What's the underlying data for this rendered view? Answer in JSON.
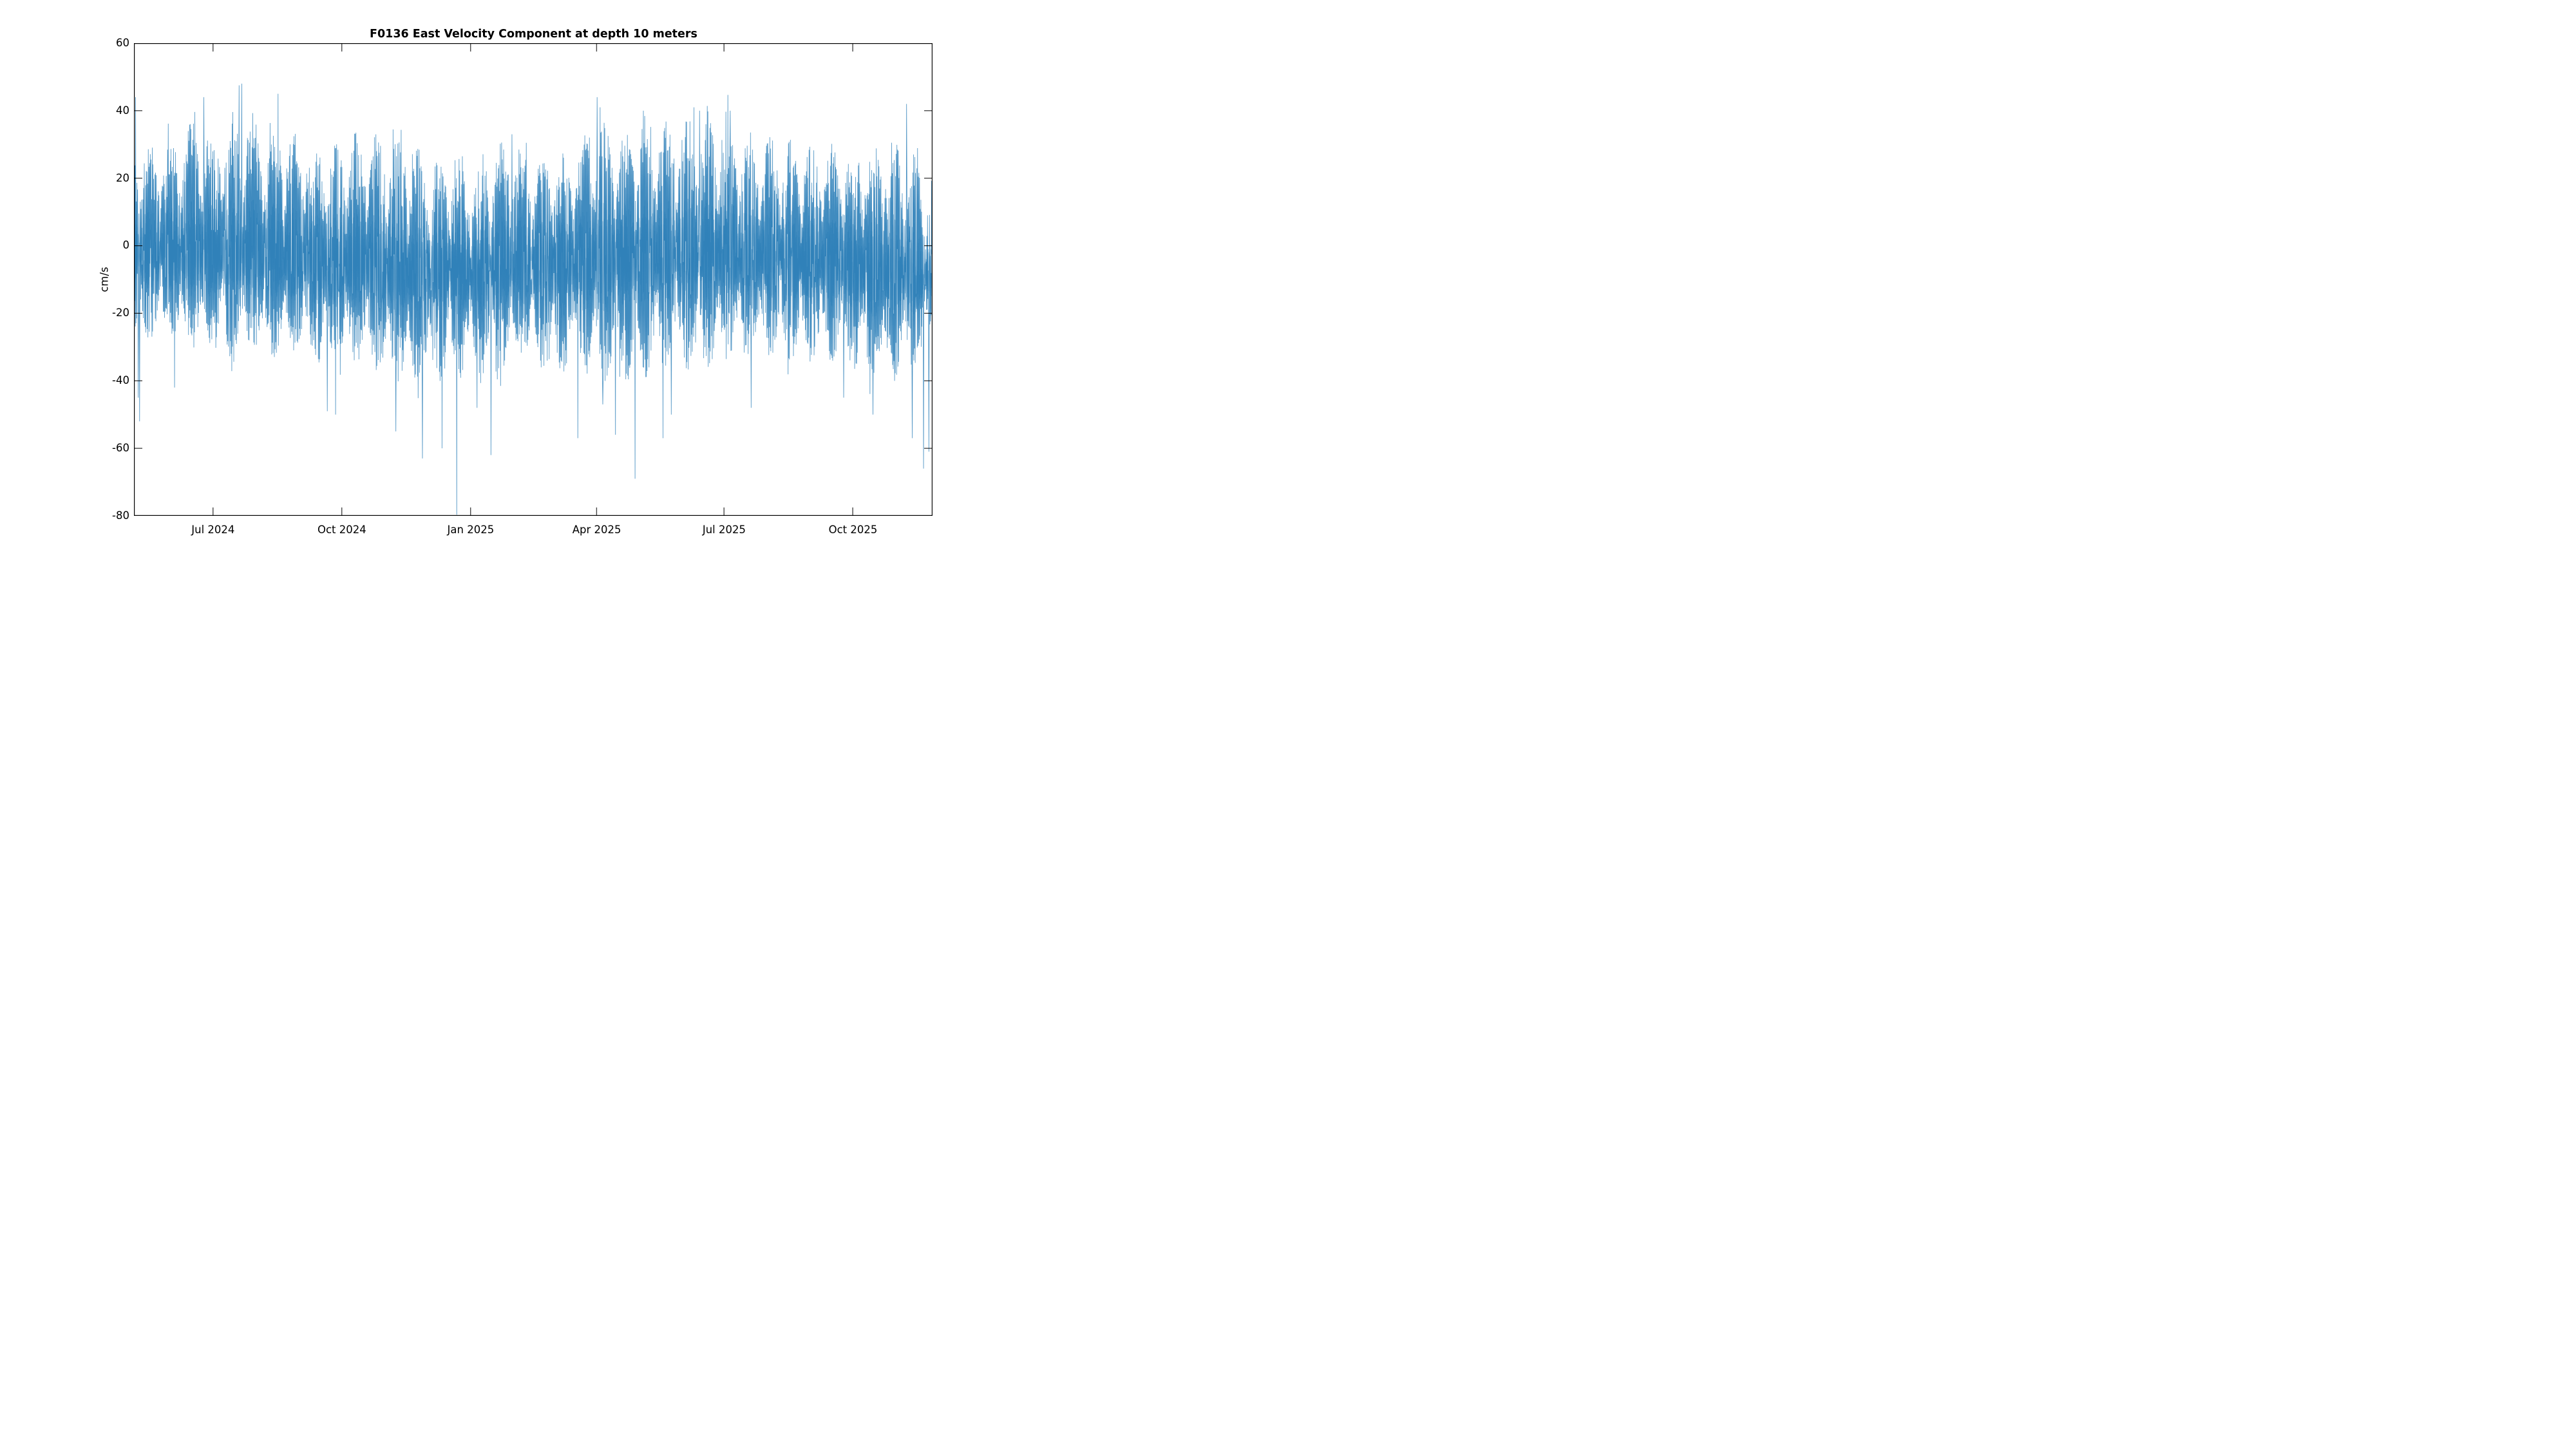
{
  "chart_data": {
    "type": "line",
    "title": "F0136 East Velocity Component at depth 10 meters",
    "ylabel": "cm/s",
    "ylim": [
      -80,
      60
    ],
    "yticks": [
      {
        "label": "60",
        "value": 60
      },
      {
        "label": "40",
        "value": 40
      },
      {
        "label": "20",
        "value": 20
      },
      {
        "label": "0",
        "value": 0
      },
      {
        "label": "-20",
        "value": -20
      },
      {
        "label": "-40",
        "value": -40
      },
      {
        "label": "-60",
        "value": -60
      },
      {
        "label": "-80",
        "value": -80
      }
    ],
    "xticks": [
      {
        "label": "Jul 2024",
        "day": 56.5
      },
      {
        "label": "Oct 2024",
        "day": 148.5
      },
      {
        "label": "Jan 2025",
        "day": 240.5
      },
      {
        "label": "Apr 2025",
        "day": 330.5
      },
      {
        "label": "Jul 2025",
        "day": 421.5
      },
      {
        "label": "Oct 2025",
        "day": 513.5
      }
    ],
    "domain_days": [
      0,
      570.5
    ],
    "grid": false,
    "legend": null,
    "line_color": "#1f77b4",
    "axis_color": "#000000",
    "series": {
      "name": "east velocity",
      "units": "cm/s",
      "character": "high-frequency tidal oscillation about a near-zero mean",
      "spring_neap_period_days": 14.77,
      "mean_level": [
        [
          0,
          -2
        ],
        [
          60,
          -3
        ],
        [
          120,
          -5
        ],
        [
          180,
          -7
        ],
        [
          230,
          -8
        ],
        [
          270,
          -6
        ],
        [
          330,
          -4
        ],
        [
          420,
          -3
        ],
        [
          480,
          -5
        ],
        [
          540,
          -8
        ],
        [
          570,
          -9
        ]
      ],
      "envelope_upper": [
        [
          0,
          30
        ],
        [
          10,
          28
        ],
        [
          25,
          31
        ],
        [
          40,
          36
        ],
        [
          57,
          33
        ],
        [
          70,
          38
        ],
        [
          80,
          40
        ],
        [
          92,
          34
        ],
        [
          103,
          38
        ],
        [
          118,
          32
        ],
        [
          133,
          30
        ],
        [
          149,
          30
        ],
        [
          160,
          33
        ],
        [
          178,
          34
        ],
        [
          192,
          29
        ],
        [
          207,
          27
        ],
        [
          222,
          26
        ],
        [
          241,
          26
        ],
        [
          256,
          28
        ],
        [
          270,
          30
        ],
        [
          285,
          26
        ],
        [
          300,
          25
        ],
        [
          315,
          27
        ],
        [
          327,
          34
        ],
        [
          338,
          36
        ],
        [
          352,
          34
        ],
        [
          365,
          37
        ],
        [
          380,
          35
        ],
        [
          392,
          38
        ],
        [
          406,
          36
        ],
        [
          420,
          37
        ],
        [
          435,
          33
        ],
        [
          450,
          31
        ],
        [
          465,
          31
        ],
        [
          480,
          29
        ],
        [
          495,
          29
        ],
        [
          510,
          28
        ],
        [
          525,
          29
        ],
        [
          538,
          33
        ],
        [
          548,
          30
        ],
        [
          558,
          26
        ],
        [
          570,
          21
        ]
      ],
      "envelope_lower": [
        [
          0,
          -30
        ],
        [
          10,
          -27
        ],
        [
          25,
          -28
        ],
        [
          40,
          -31
        ],
        [
          57,
          -31
        ],
        [
          70,
          -34
        ],
        [
          85,
          -31
        ],
        [
          100,
          -32
        ],
        [
          118,
          -31
        ],
        [
          133,
          -36
        ],
        [
          149,
          -35
        ],
        [
          163,
          -33
        ],
        [
          180,
          -38
        ],
        [
          196,
          -41
        ],
        [
          210,
          -41
        ],
        [
          225,
          -39
        ],
        [
          241,
          -37
        ],
        [
          256,
          -39
        ],
        [
          270,
          -35
        ],
        [
          285,
          -33
        ],
        [
          300,
          -38
        ],
        [
          315,
          -37
        ],
        [
          330,
          -41
        ],
        [
          345,
          -41
        ],
        [
          360,
          -39
        ],
        [
          375,
          -35
        ],
        [
          392,
          -35
        ],
        [
          406,
          -37
        ],
        [
          420,
          -35
        ],
        [
          435,
          -31
        ],
        [
          450,
          -31
        ],
        [
          465,
          -33
        ],
        [
          480,
          -35
        ],
        [
          495,
          -33
        ],
        [
          510,
          -35
        ],
        [
          525,
          -39
        ],
        [
          540,
          -41
        ],
        [
          555,
          -37
        ],
        [
          570,
          -25
        ]
      ],
      "extreme_events": [
        [
          0.3,
          48.5
        ],
        [
          1.1,
          44
        ],
        [
          3.2,
          -45
        ],
        [
          4.1,
          -52
        ],
        [
          29,
          -42
        ],
        [
          50,
          44
        ],
        [
          75,
          47.5
        ],
        [
          77,
          48
        ],
        [
          103,
          45
        ],
        [
          138,
          -49
        ],
        [
          144,
          -50
        ],
        [
          187,
          -55
        ],
        [
          206,
          -63
        ],
        [
          220,
          -60
        ],
        [
          230.5,
          -79.7
        ],
        [
          245,
          -48
        ],
        [
          255,
          -62
        ],
        [
          270,
          33
        ],
        [
          317,
          -57
        ],
        [
          331,
          44
        ],
        [
          333,
          41
        ],
        [
          335,
          -47
        ],
        [
          344,
          -56
        ],
        [
          358,
          -69
        ],
        [
          364,
          40
        ],
        [
          378,
          -57
        ],
        [
          384,
          -50
        ],
        [
          400,
          41
        ],
        [
          404,
          40
        ],
        [
          426,
          40
        ],
        [
          441,
          -48
        ],
        [
          507,
          -45
        ],
        [
          528,
          -50
        ],
        [
          552,
          42
        ],
        [
          556,
          -57
        ],
        [
          564,
          -66
        ],
        [
          568,
          -61
        ]
      ]
    }
  }
}
